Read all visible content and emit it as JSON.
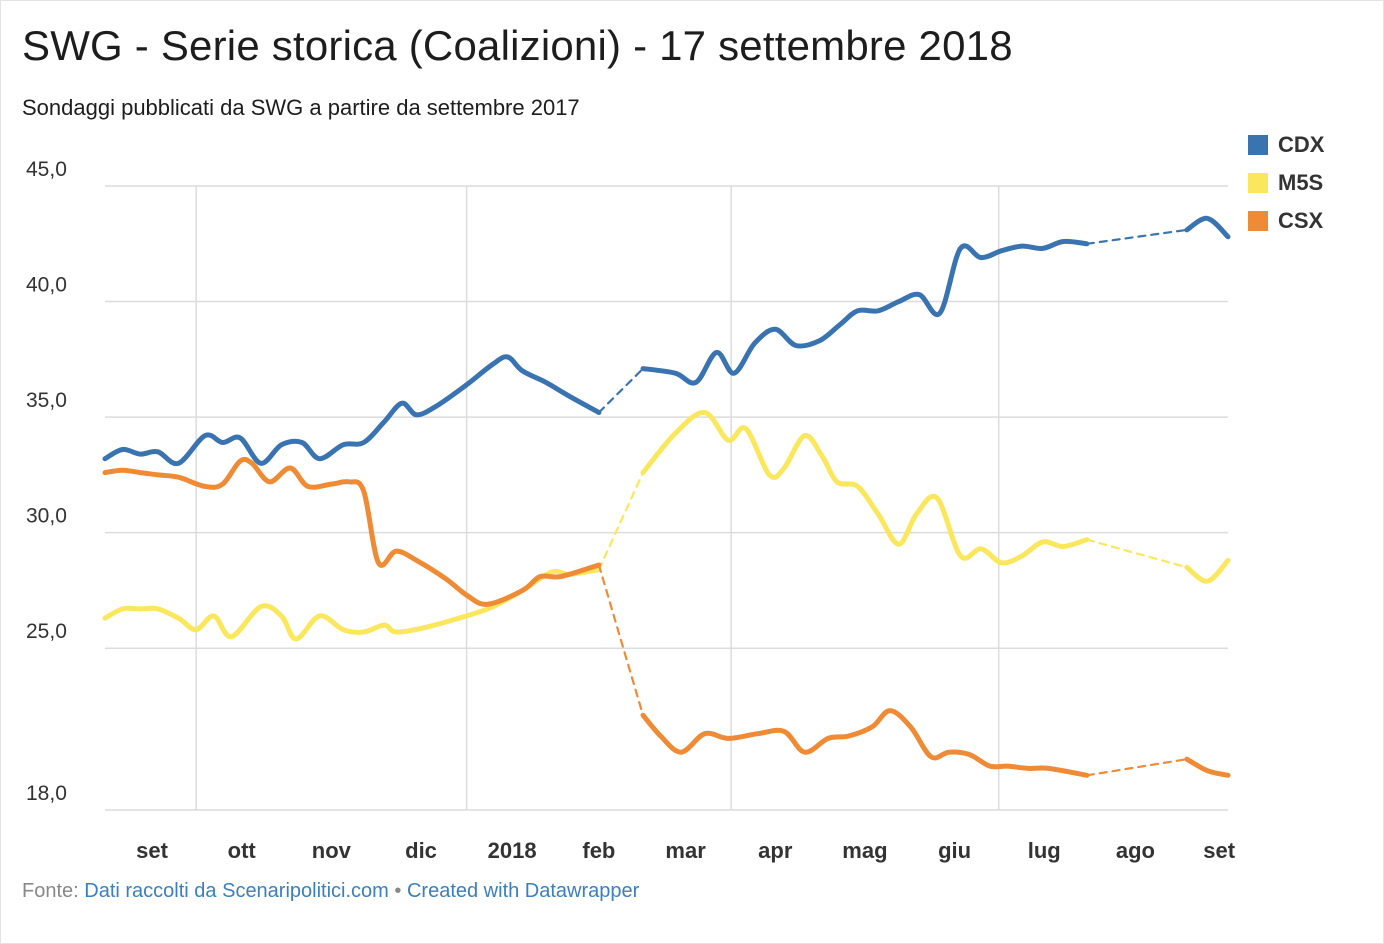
{
  "header": {
    "title": "SWG - Serie storica (Coalizioni) - 17 settembre 2018",
    "subtitle": "Sondaggi pubblicati da SWG a partire da settembre 2017"
  },
  "footer": {
    "prefix": "Fonte:",
    "source_link": "Dati raccolti da Scenaripolitici.com",
    "separator": "•",
    "credit_link": "Created with Datawrapper"
  },
  "colors": {
    "CDX": "#3a74b0",
    "M5S": "#fbe75c",
    "CSX": "#ef8a35",
    "grid": "#dcdcdc"
  },
  "chart_data": {
    "type": "line",
    "title": "SWG - Serie storica (Coalizioni) - 17 settembre 2018",
    "subtitle": "Sondaggi pubblicati da SWG a partire da settembre 2017",
    "ylim": [
      18.0,
      45.0
    ],
    "yticks": [
      "45,0",
      "40,0",
      "35,0",
      "30,0",
      "25,0",
      "18,0"
    ],
    "ytick_values": [
      45,
      40,
      35,
      30,
      25,
      18
    ],
    "xtick_labels": [
      "set",
      "ott",
      "nov",
      "dic",
      "2018",
      "feb",
      "mar",
      "apr",
      "mag",
      "giu",
      "lug",
      "ago",
      "set"
    ],
    "xtick_dates": [
      "2017-09-01",
      "2017-10-01",
      "2017-11-01",
      "2017-12-01",
      "2018-01-01",
      "2018-02-01",
      "2018-03-01",
      "2018-04-01",
      "2018-05-01",
      "2018-06-01",
      "2018-07-01",
      "2018-08-01",
      "2018-09-01"
    ],
    "x_range": [
      "2017-08-31",
      "2018-09-17"
    ],
    "grid": true,
    "legend_position": "top-right",
    "series": [
      {
        "name": "CDX",
        "segments": [
          {
            "style": "solid",
            "points": [
              [
                "2017-08-31",
                33.2
              ],
              [
                "2017-09-06",
                33.6
              ],
              [
                "2017-09-12",
                33.4
              ],
              [
                "2017-09-18",
                33.5
              ],
              [
                "2017-09-25",
                33.0
              ],
              [
                "2017-10-04",
                34.2
              ],
              [
                "2017-10-10",
                33.9
              ],
              [
                "2017-10-16",
                34.1
              ],
              [
                "2017-10-23",
                33.0
              ],
              [
                "2017-10-30",
                33.8
              ],
              [
                "2017-11-06",
                33.9
              ],
              [
                "2017-11-12",
                33.2
              ],
              [
                "2017-11-20",
                33.8
              ],
              [
                "2017-11-27",
                33.9
              ],
              [
                "2017-12-04",
                34.8
              ],
              [
                "2017-12-10",
                35.6
              ],
              [
                "2017-12-15",
                35.1
              ],
              [
                "2017-12-22",
                35.5
              ],
              [
                "2018-01-01",
                36.4
              ],
              [
                "2018-01-10",
                37.3
              ],
              [
                "2018-01-15",
                37.6
              ],
              [
                "2018-01-20",
                37.0
              ],
              [
                "2018-01-28",
                36.5
              ],
              [
                "2018-02-05",
                35.9
              ],
              [
                "2018-02-15",
                35.2
              ]
            ]
          },
          {
            "style": "dashed",
            "points": [
              [
                "2018-02-15",
                35.2
              ],
              [
                "2018-03-02",
                37.1
              ]
            ]
          },
          {
            "style": "solid",
            "points": [
              [
                "2018-03-02",
                37.1
              ],
              [
                "2018-03-13",
                36.9
              ],
              [
                "2018-03-20",
                36.5
              ],
              [
                "2018-03-27",
                37.8
              ],
              [
                "2018-04-02",
                36.9
              ],
              [
                "2018-04-09",
                38.2
              ],
              [
                "2018-04-16",
                38.8
              ],
              [
                "2018-04-23",
                38.1
              ],
              [
                "2018-05-01",
                38.3
              ],
              [
                "2018-05-08",
                39.0
              ],
              [
                "2018-05-14",
                39.6
              ],
              [
                "2018-05-21",
                39.6
              ],
              [
                "2018-05-28",
                40.0
              ],
              [
                "2018-06-04",
                40.3
              ],
              [
                "2018-06-11",
                39.5
              ],
              [
                "2018-06-18",
                42.3
              ],
              [
                "2018-06-25",
                41.9
              ],
              [
                "2018-07-02",
                42.2
              ],
              [
                "2018-07-09",
                42.4
              ],
              [
                "2018-07-16",
                42.3
              ],
              [
                "2018-07-23",
                42.6
              ],
              [
                "2018-07-31",
                42.5
              ]
            ]
          },
          {
            "style": "dashed",
            "points": [
              [
                "2018-07-31",
                42.5
              ],
              [
                "2018-09-03",
                43.1
              ]
            ]
          },
          {
            "style": "solid",
            "points": [
              [
                "2018-09-03",
                43.1
              ],
              [
                "2018-09-10",
                43.6
              ],
              [
                "2018-09-17",
                42.8
              ]
            ]
          }
        ]
      },
      {
        "name": "M5S",
        "segments": [
          {
            "style": "solid",
            "points": [
              [
                "2017-08-31",
                26.3
              ],
              [
                "2017-09-06",
                26.7
              ],
              [
                "2017-09-12",
                26.7
              ],
              [
                "2017-09-18",
                26.7
              ],
              [
                "2017-09-25",
                26.3
              ],
              [
                "2017-10-01",
                25.8
              ],
              [
                "2017-10-07",
                26.4
              ],
              [
                "2017-10-13",
                25.5
              ],
              [
                "2017-10-23",
                26.8
              ],
              [
                "2017-10-30",
                26.4
              ],
              [
                "2017-11-04",
                25.4
              ],
              [
                "2017-11-12",
                26.4
              ],
              [
                "2017-11-20",
                25.8
              ],
              [
                "2017-11-27",
                25.7
              ],
              [
                "2017-12-04",
                26.0
              ],
              [
                "2017-12-08",
                25.7
              ],
              [
                "2017-12-18",
                25.9
              ],
              [
                "2018-01-01",
                26.4
              ],
              [
                "2018-01-10",
                26.8
              ],
              [
                "2018-01-20",
                27.5
              ],
              [
                "2018-01-30",
                28.3
              ],
              [
                "2018-02-05",
                28.2
              ],
              [
                "2018-02-15",
                28.4
              ]
            ]
          },
          {
            "style": "dashed",
            "points": [
              [
                "2018-02-15",
                28.4
              ],
              [
                "2018-03-02",
                32.6
              ]
            ]
          },
          {
            "style": "solid",
            "points": [
              [
                "2018-03-02",
                32.6
              ],
              [
                "2018-03-13",
                34.3
              ],
              [
                "2018-03-23",
                35.2
              ],
              [
                "2018-03-31",
                34.0
              ],
              [
                "2018-04-06",
                34.5
              ],
              [
                "2018-04-14",
                32.5
              ],
              [
                "2018-04-19",
                32.8
              ],
              [
                "2018-04-26",
                34.2
              ],
              [
                "2018-05-02",
                33.3
              ],
              [
                "2018-05-07",
                32.2
              ],
              [
                "2018-05-14",
                32.0
              ],
              [
                "2018-05-21",
                30.8
              ],
              [
                "2018-05-28",
                29.5
              ],
              [
                "2018-06-03",
                30.8
              ],
              [
                "2018-06-10",
                31.5
              ],
              [
                "2018-06-18",
                29.0
              ],
              [
                "2018-06-25",
                29.3
              ],
              [
                "2018-07-02",
                28.7
              ],
              [
                "2018-07-09",
                29.0
              ],
              [
                "2018-07-16",
                29.6
              ],
              [
                "2018-07-23",
                29.4
              ],
              [
                "2018-07-31",
                29.7
              ]
            ]
          },
          {
            "style": "dashed",
            "points": [
              [
                "2018-07-31",
                29.7
              ],
              [
                "2018-09-03",
                28.5
              ]
            ]
          },
          {
            "style": "solid",
            "points": [
              [
                "2018-09-03",
                28.5
              ],
              [
                "2018-09-10",
                27.9
              ],
              [
                "2018-09-17",
                28.8
              ]
            ]
          }
        ]
      },
      {
        "name": "CSX",
        "segments": [
          {
            "style": "solid",
            "points": [
              [
                "2017-08-31",
                32.6
              ],
              [
                "2017-09-06",
                32.7
              ],
              [
                "2017-09-12",
                32.6
              ],
              [
                "2017-09-18",
                32.5
              ],
              [
                "2017-09-25",
                32.4
              ],
              [
                "2017-10-04",
                32.0
              ],
              [
                "2017-10-10",
                32.1
              ],
              [
                "2017-10-16",
                33.1
              ],
              [
                "2017-10-20",
                33.0
              ],
              [
                "2017-10-26",
                32.2
              ],
              [
                "2017-11-02",
                32.8
              ],
              [
                "2017-11-08",
                32.0
              ],
              [
                "2017-11-16",
                32.1
              ],
              [
                "2017-11-22",
                32.2
              ],
              [
                "2017-11-27",
                31.8
              ],
              [
                "2017-12-02",
                28.7
              ],
              [
                "2017-12-08",
                29.2
              ],
              [
                "2017-12-15",
                28.8
              ],
              [
                "2017-12-25",
                28.0
              ],
              [
                "2018-01-01",
                27.3
              ],
              [
                "2018-01-08",
                26.9
              ],
              [
                "2018-01-20",
                27.5
              ],
              [
                "2018-01-26",
                28.1
              ],
              [
                "2018-02-02",
                28.1
              ],
              [
                "2018-02-15",
                28.6
              ]
            ]
          },
          {
            "style": "dashed",
            "points": [
              [
                "2018-02-15",
                28.6
              ],
              [
                "2018-03-02",
                22.1
              ]
            ]
          },
          {
            "style": "solid",
            "points": [
              [
                "2018-03-02",
                22.1
              ],
              [
                "2018-03-08",
                21.2
              ],
              [
                "2018-03-15",
                20.5
              ],
              [
                "2018-03-23",
                21.3
              ],
              [
                "2018-03-31",
                21.1
              ],
              [
                "2018-04-10",
                21.3
              ],
              [
                "2018-04-19",
                21.4
              ],
              [
                "2018-04-26",
                20.5
              ],
              [
                "2018-05-04",
                21.1
              ],
              [
                "2018-05-11",
                21.2
              ],
              [
                "2018-05-19",
                21.6
              ],
              [
                "2018-05-25",
                22.3
              ],
              [
                "2018-06-01",
                21.6
              ],
              [
                "2018-06-08",
                20.3
              ],
              [
                "2018-06-14",
                20.5
              ],
              [
                "2018-06-21",
                20.4
              ],
              [
                "2018-06-28",
                19.9
              ],
              [
                "2018-07-04",
                19.9
              ],
              [
                "2018-07-11",
                19.8
              ],
              [
                "2018-07-18",
                19.8
              ],
              [
                "2018-07-31",
                19.5
              ]
            ]
          },
          {
            "style": "dashed",
            "points": [
              [
                "2018-07-31",
                19.5
              ],
              [
                "2018-09-03",
                20.2
              ]
            ]
          },
          {
            "style": "solid",
            "points": [
              [
                "2018-09-03",
                20.2
              ],
              [
                "2018-09-10",
                19.7
              ],
              [
                "2018-09-17",
                19.5
              ]
            ]
          }
        ]
      }
    ]
  }
}
